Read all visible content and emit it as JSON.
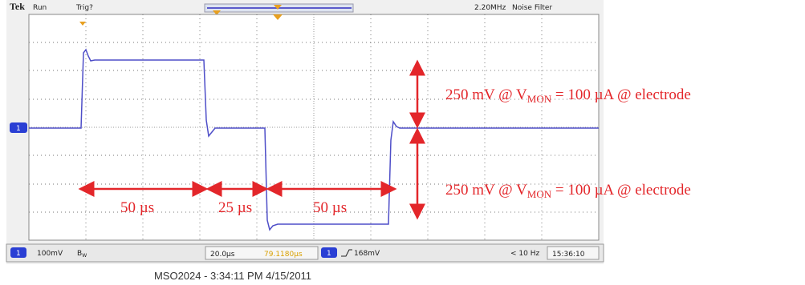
{
  "header": {
    "brand": "Tek",
    "status": "Run",
    "trigger": "Trig?",
    "bandwidth": "2.20MHz",
    "filter": "Noise Filter"
  },
  "channel_marker": "1",
  "status_bar": {
    "channel": "1",
    "scale": "100mV",
    "bw_main": "B",
    "bw_sub": "W",
    "timebase": "20.0µs",
    "position": "79.1180µs",
    "trigger_channel": "1",
    "trigger_level": "168mV",
    "frequency": "< 10 Hz",
    "time": "15:36:10"
  },
  "footer": "MSO2024 - 3:34:11 PM   4/15/2011",
  "durations": [
    "50 µs",
    "25 µs",
    "50 µs"
  ],
  "amplitude_labels": [
    {
      "before": "250 mV @ V",
      "sub": "MON",
      "after": " = 100 µA @ electrode"
    },
    {
      "before": "250 mV @ V",
      "sub": "MON",
      "after": " = 100 µA @ electrode"
    }
  ]
}
